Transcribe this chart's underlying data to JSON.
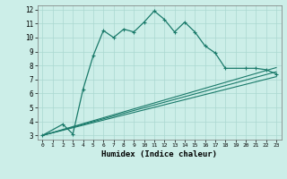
{
  "xlabel": "Humidex (Indice chaleur)",
  "ylabel": "",
  "bg_color": "#cceee8",
  "line_color": "#1a7a6a",
  "grid_color": "#aad8d0",
  "xlim": [
    -0.5,
    23.5
  ],
  "ylim": [
    2.7,
    12.3
  ],
  "x_ticks": [
    0,
    1,
    2,
    3,
    4,
    5,
    6,
    7,
    8,
    9,
    10,
    11,
    12,
    13,
    14,
    15,
    16,
    17,
    18,
    19,
    20,
    21,
    22,
    23
  ],
  "y_ticks": [
    3,
    4,
    5,
    6,
    7,
    8,
    9,
    10,
    11,
    12
  ],
  "series1_x": [
    0,
    2,
    3,
    4,
    5,
    6,
    7,
    8,
    9,
    10,
    11,
    12,
    13,
    14,
    15,
    16,
    17,
    18,
    20,
    21,
    22,
    23
  ],
  "series1_y": [
    3.0,
    3.8,
    3.1,
    6.3,
    8.7,
    10.5,
    10.0,
    10.6,
    10.4,
    11.1,
    11.9,
    11.3,
    10.4,
    11.1,
    10.4,
    9.4,
    8.9,
    7.8,
    7.8,
    7.8,
    7.7,
    7.4
  ],
  "series2_x": [
    0,
    23
  ],
  "series2_y": [
    3.0,
    7.2
  ],
  "series3_x": [
    0,
    23
  ],
  "series3_y": [
    3.0,
    7.55
  ],
  "series4_x": [
    0,
    23
  ],
  "series4_y": [
    3.0,
    7.85
  ]
}
